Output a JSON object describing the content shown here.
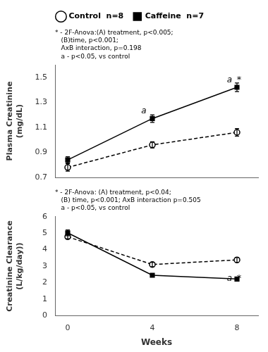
{
  "chart_data": [
    {
      "type": "line",
      "x": [
        0,
        4,
        8
      ],
      "series": [
        {
          "name": "Control  n=8",
          "color": "#000000",
          "marker": "circle",
          "line_style": "dashed",
          "values": [
            0.78,
            0.96,
            1.06
          ],
          "errors": [
            0.03,
            0.025,
            0.03
          ]
        },
        {
          "name": "Caffeine  n=7",
          "color": "#000000",
          "marker": "square",
          "line_style": "solid",
          "values": [
            0.84,
            1.17,
            1.42
          ],
          "errors": [
            0.025,
            0.03,
            0.035
          ]
        }
      ],
      "ylabel": "Plasma Creatinine\n(mg/dL)",
      "subtitle": [
        "* - 2F-Anova:(A) treatment, p<0.005;",
        "   (B)time, p<0.001;",
        "   AxB interaction, p=0.198",
        "   a - p<0.05, vs control"
      ],
      "annotations": [
        {
          "text": "a",
          "x": 3.6,
          "y": 1.21
        },
        {
          "text": "a",
          "x": 7.65,
          "y": 1.46
        },
        {
          "text": "*",
          "x": 8.1,
          "y": 1.46
        }
      ],
      "xlim": [
        -0.6,
        9.0
      ],
      "xticks": [
        0,
        4,
        8
      ],
      "ylim": [
        0.7,
        1.6
      ],
      "yticks": [
        0.7,
        0.9,
        1.1,
        1.3,
        1.5
      ],
      "tick_labels": "y",
      "grid": false,
      "legend": "top"
    },
    {
      "type": "line",
      "x": [
        0,
        4,
        8
      ],
      "series": [
        {
          "name": "Control  n=8",
          "color": "#000000",
          "marker": "circle",
          "line_style": "dashed",
          "values": [
            4.78,
            3.1,
            3.38
          ],
          "errors": [
            0.12,
            0.13,
            0.15
          ]
        },
        {
          "name": "Caffeine  n=7",
          "color": "#000000",
          "marker": "square",
          "line_style": "solid",
          "values": [
            5.02,
            2.45,
            2.22
          ],
          "errors": [
            0.18,
            0.1,
            0.08
          ]
        }
      ],
      "xlabel": "Weeks",
      "ylabel": "Creatinine Clearance\n(L/kg/day))",
      "subtitle": [
        "* - 2F-Anova: (A) treatment, p<0.04;",
        "   (B) time, p<0.001; AxB interaction p=0.505",
        "   a - p<0.05, vs control"
      ],
      "annotations": [
        {
          "text": "a",
          "x": 7.65,
          "y": 2.1
        },
        {
          "text": "*",
          "x": 8.1,
          "y": 2.1
        }
      ],
      "xlim": [
        -0.6,
        9.0
      ],
      "xticks": [
        0,
        4,
        8
      ],
      "ylim": [
        0,
        6
      ],
      "yticks": [
        0,
        1,
        2,
        3,
        4,
        5,
        6
      ],
      "grid": false
    }
  ]
}
